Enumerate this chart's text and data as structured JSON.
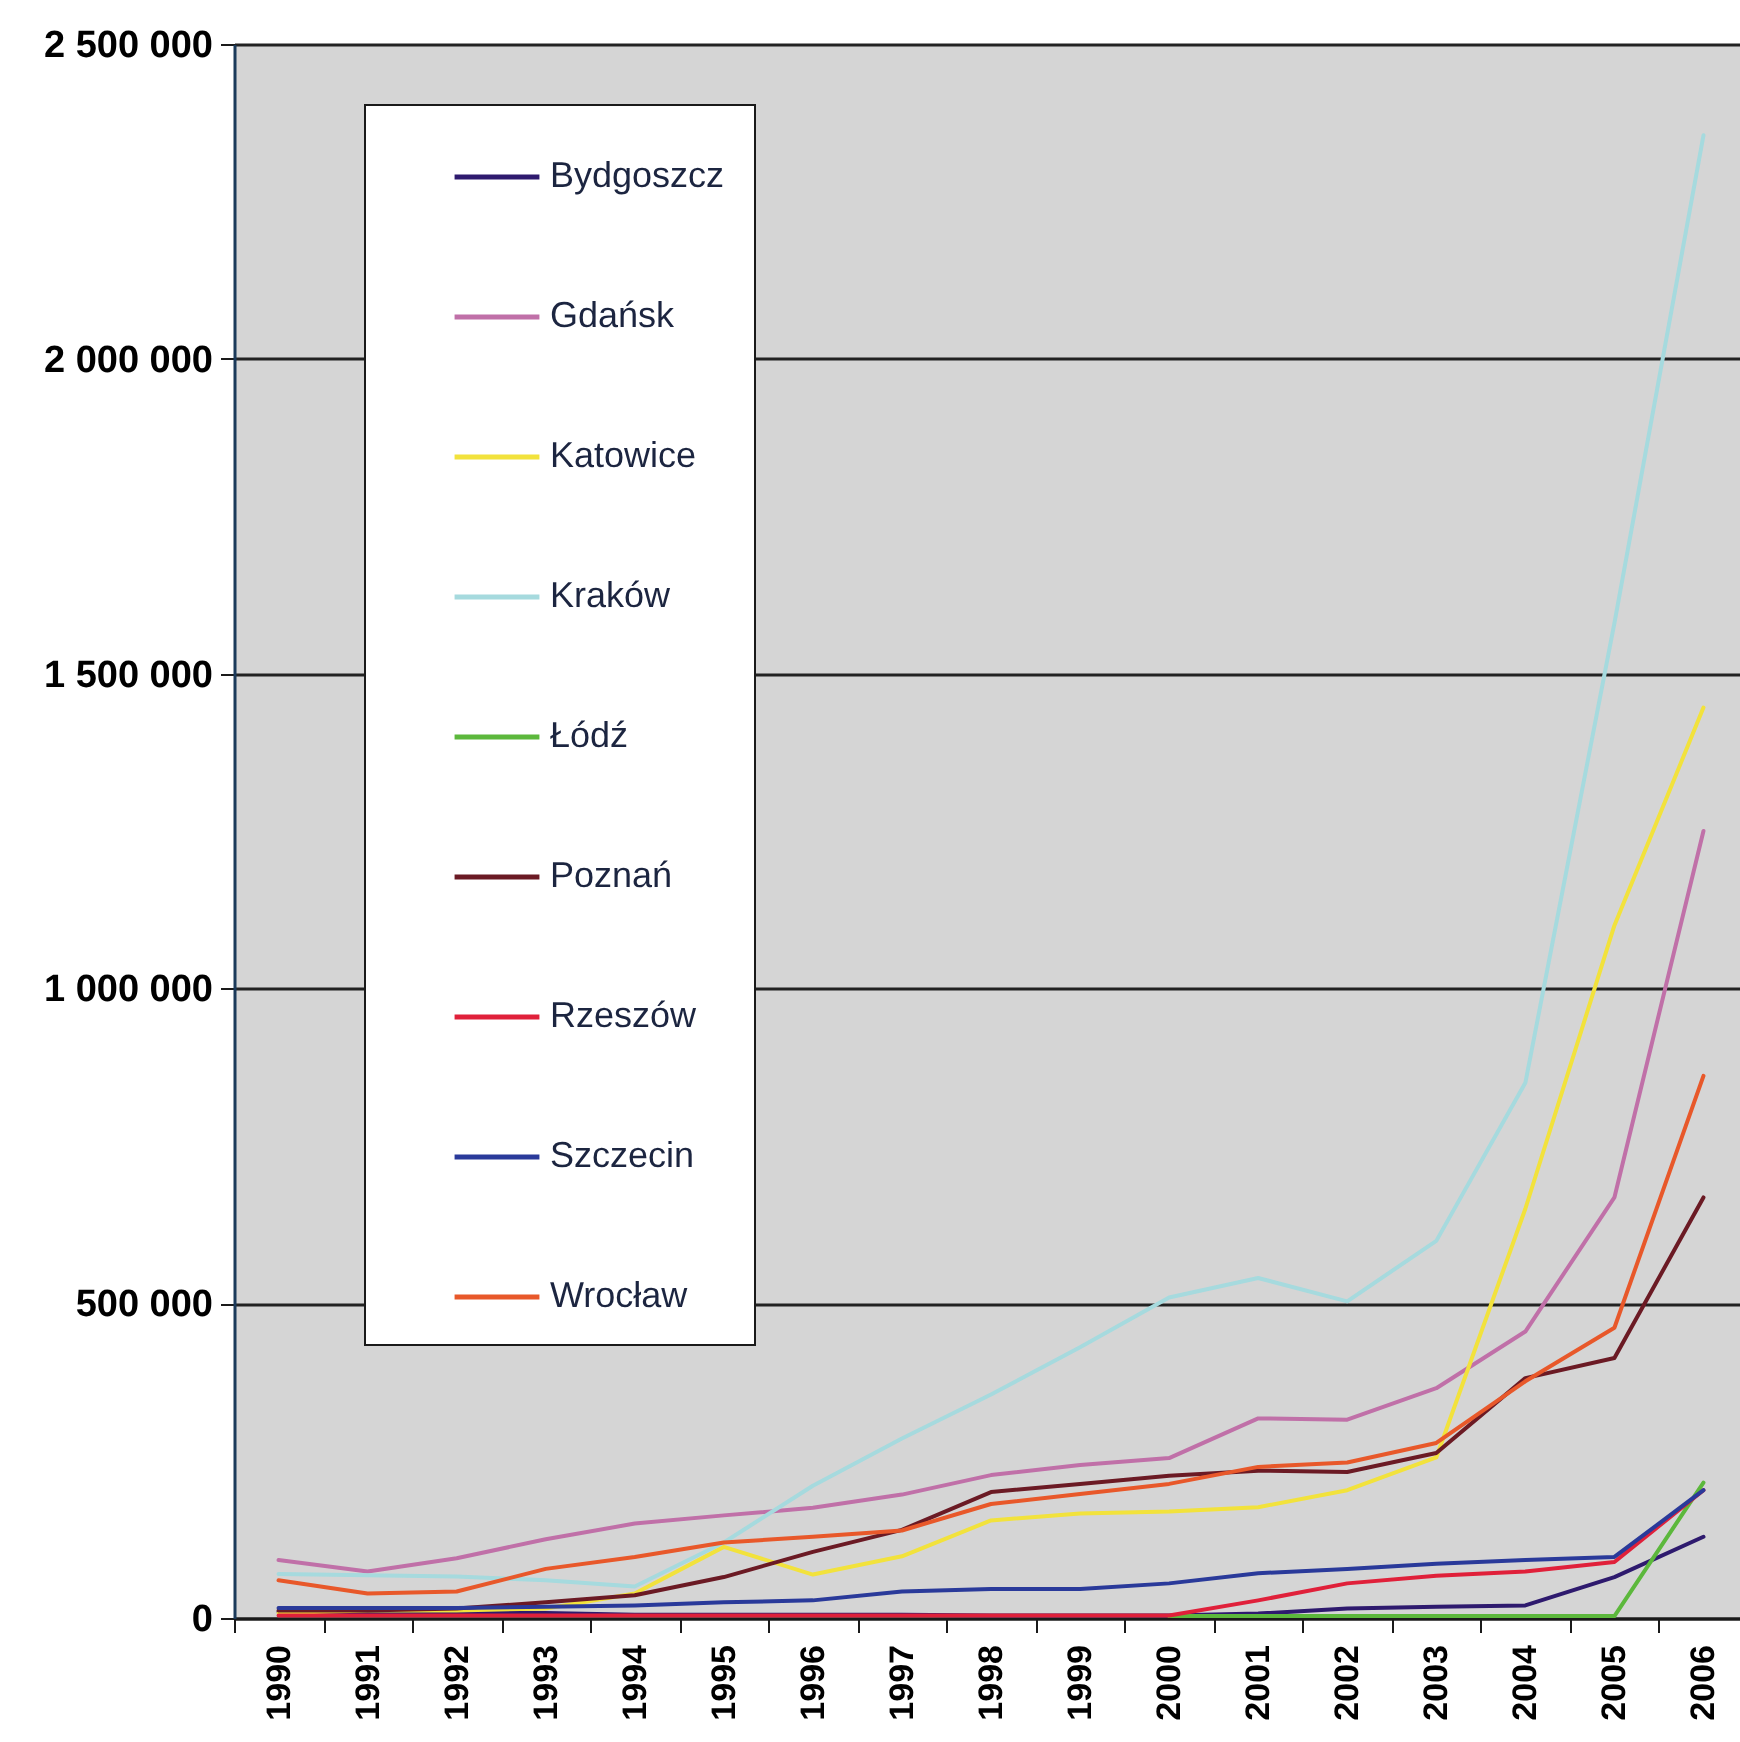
{
  "chart_data": {
    "type": "line",
    "categories": [
      "1990",
      "1991",
      "1992",
      "1993",
      "1994",
      "1995",
      "1996",
      "1997",
      "1998",
      "1999",
      "2000",
      "2001",
      "2002",
      "2003",
      "2004",
      "2005",
      "2006"
    ],
    "series": [
      {
        "name": "Bydgoszcz",
        "color": "#2e1a6e",
        "values": [
          10000,
          8000,
          8000,
          8000,
          5000,
          5000,
          5000,
          5000,
          4000,
          4000,
          4000,
          7000,
          15000,
          18000,
          20000,
          65000,
          129000
        ]
      },
      {
        "name": "Gdańsk",
        "color": "#c070a8",
        "values": [
          92000,
          74000,
          95000,
          125000,
          150000,
          163000,
          175000,
          196000,
          227000,
          243000,
          254000,
          317000,
          315000,
          365000,
          455000,
          668000,
          1250000
        ]
      },
      {
        "name": "Katowice",
        "color": "#f2e23c",
        "values": [
          8000,
          12000,
          12000,
          15000,
          39000,
          113000,
          69000,
          98000,
          155000,
          166000,
          169000,
          176000,
          203000,
          255000,
          650000,
          1100000,
          1446000
        ]
      },
      {
        "name": "Kraków",
        "color": "#a6dade",
        "values": [
          70000,
          68000,
          66000,
          60000,
          50000,
          120000,
          210000,
          285000,
          355000,
          430000,
          509000,
          540000,
          503000,
          599000,
          850000,
          1580000,
          2355000
        ]
      },
      {
        "name": "Łódź",
        "color": "#5cb83c",
        "values": [
          null,
          null,
          null,
          null,
          null,
          null,
          null,
          null,
          null,
          null,
          3000,
          3000,
          3000,
          3000,
          3000,
          3000,
          215000
        ]
      },
      {
        "name": "Poznań",
        "color": "#6b1a24",
        "values": [
          12000,
          12000,
          15000,
          25000,
          36000,
          65000,
          105000,
          140000,
          200000,
          213000,
          226000,
          234000,
          232000,
          262000,
          381000,
          413000,
          668000
        ]
      },
      {
        "name": "Rzeszów",
        "color": "#e0203a",
        "values": [
          4000,
          4000,
          4000,
          4000,
          4000,
          4000,
          4000,
          4000,
          4000,
          4000,
          4000,
          28000,
          55000,
          67000,
          74000,
          89000,
          203000
        ]
      },
      {
        "name": "Szczecin",
        "color": "#2a3a9a",
        "values": [
          16000,
          16000,
          16000,
          18000,
          20000,
          25000,
          28000,
          42000,
          46000,
          46000,
          55000,
          71000,
          78000,
          86000,
          92000,
          97000,
          203000
        ]
      },
      {
        "name": "Wrocław",
        "color": "#e8582a",
        "values": [
          60000,
          39000,
          42000,
          78000,
          97000,
          120000,
          129000,
          139000,
          181000,
          197000,
          213000,
          240000,
          247000,
          278000,
          376000,
          461000,
          861000
        ]
      }
    ],
    "ylim": [
      0,
      2500000
    ],
    "yticks": [
      0,
      {
        "value": 500000,
        "label": "500 000"
      },
      {
        "value": 1000000,
        "label": "1 000 000"
      },
      {
        "value": 1500000,
        "label": "1 500 000"
      },
      {
        "value": 2000000,
        "label": "2 000 000"
      },
      {
        "value": 2500000,
        "label": "2 500 000"
      }
    ],
    "grid": "y",
    "legend": "top left"
  }
}
